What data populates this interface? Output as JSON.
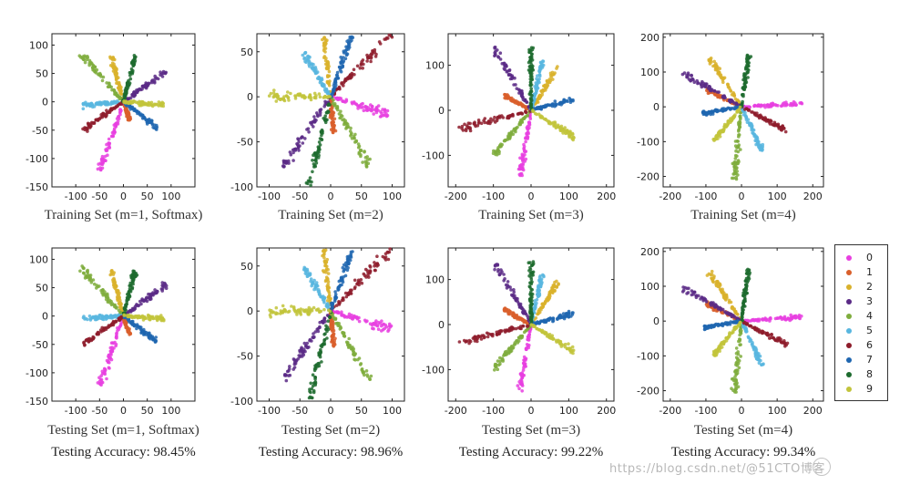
{
  "chart_data": [
    {
      "type": "scatter",
      "title": "",
      "xlabel": "Training Set (m=1, Softmax)",
      "xlim": [
        -150,
        150
      ],
      "ylim": [
        -150,
        120
      ],
      "xticks": [
        "-100",
        "-50",
        "0",
        "50",
        "100"
      ],
      "yticks": [
        "100",
        "50",
        "0",
        "-50",
        "-100",
        "-150"
      ],
      "accuracy": "",
      "series": [
        {
          "name": "0",
          "direction": [
            -40,
            -100
          ],
          "length": 130
        },
        {
          "name": "1",
          "direction": [
            10,
            -25
          ],
          "length": 35
        },
        {
          "name": "2",
          "direction": [
            -25,
            80
          ],
          "length": 85
        },
        {
          "name": "3",
          "direction": [
            90,
            55
          ],
          "length": 105
        },
        {
          "name": "4",
          "direction": [
            -90,
            85
          ],
          "length": 125
        },
        {
          "name": "5",
          "direction": [
            -80,
            -5
          ],
          "length": 85
        },
        {
          "name": "6",
          "direction": [
            -85,
            -50
          ],
          "length": 100
        },
        {
          "name": "7",
          "direction": [
            70,
            -45
          ],
          "length": 85
        },
        {
          "name": "8",
          "direction": [
            25,
            80
          ],
          "length": 85
        },
        {
          "name": "9",
          "direction": [
            80,
            -5
          ],
          "length": 85
        }
      ]
    },
    {
      "type": "scatter",
      "title": "",
      "xlabel": "Training Set (m=2)",
      "xlim": [
        -120,
        120
      ],
      "ylim": [
        -100,
        70
      ],
      "xticks": [
        "-100",
        "-50",
        "0",
        "50",
        "100"
      ],
      "yticks": [
        "50",
        "0",
        "-50",
        "-100"
      ],
      "accuracy": "",
      "series": [
        {
          "name": "0",
          "direction": [
            100,
            -20
          ],
          "length": 100
        },
        {
          "name": "1",
          "direction": [
            5,
            -40
          ],
          "length": 40
        },
        {
          "name": "2",
          "direction": [
            -15,
            90
          ],
          "length": 90
        },
        {
          "name": "3",
          "direction": [
            -80,
            -80
          ],
          "length": 110
        },
        {
          "name": "4",
          "direction": [
            65,
            -80
          ],
          "length": 100
        },
        {
          "name": "5",
          "direction": [
            -45,
            50
          ],
          "length": 65
        },
        {
          "name": "6",
          "direction": [
            100,
            70
          ],
          "length": 120
        },
        {
          "name": "7",
          "direction": [
            35,
            70
          ],
          "length": 75
        },
        {
          "name": "8",
          "direction": [
            -35,
            -100
          ],
          "length": 105
        },
        {
          "name": "9",
          "direction": [
            -100,
            0
          ],
          "length": 100
        }
      ]
    },
    {
      "type": "scatter",
      "title": "",
      "xlabel": "Training Set (m=3)",
      "xlim": [
        -220,
        220
      ],
      "ylim": [
        -170,
        170
      ],
      "xticks": [
        "-200",
        "-100",
        "0",
        "100",
        "200"
      ],
      "yticks": [
        "100",
        "0",
        "-100"
      ],
      "accuracy": "",
      "series": [
        {
          "name": "0",
          "direction": [
            -30,
            -150
          ],
          "length": 150
        },
        {
          "name": "1",
          "direction": [
            -75,
            35
          ],
          "length": 80
        },
        {
          "name": "2",
          "direction": [
            75,
            100
          ],
          "length": 120
        },
        {
          "name": "3",
          "direction": [
            -100,
            140
          ],
          "length": 170
        },
        {
          "name": "4",
          "direction": [
            -100,
            -100
          ],
          "length": 140
        },
        {
          "name": "5",
          "direction": [
            30,
            110
          ],
          "length": 115
        },
        {
          "name": "6",
          "direction": [
            -190,
            -40
          ],
          "length": 195
        },
        {
          "name": "7",
          "direction": [
            115,
            25
          ],
          "length": 115
        },
        {
          "name": "8",
          "direction": [
            0,
            140
          ],
          "length": 140
        },
        {
          "name": "9",
          "direction": [
            115,
            -60
          ],
          "length": 130
        }
      ]
    },
    {
      "type": "scatter",
      "title": "",
      "xlabel": "Training Set (m=4)",
      "xlim": [
        -220,
        230
      ],
      "ylim": [
        -230,
        210
      ],
      "xticks": [
        "-200",
        "-100",
        "0",
        "100",
        "200"
      ],
      "yticks": [
        "200",
        "100",
        "0",
        "-100",
        "-200"
      ],
      "accuracy": "",
      "series": [
        {
          "name": "0",
          "direction": [
            170,
            10
          ],
          "length": 170
        },
        {
          "name": "1",
          "direction": [
            -100,
            50
          ],
          "length": 110
        },
        {
          "name": "2",
          "direction": [
            -90,
            140
          ],
          "length": 165
        },
        {
          "name": "3",
          "direction": [
            -170,
            100
          ],
          "length": 195
        },
        {
          "name": "4",
          "direction": [
            -20,
            -210
          ],
          "length": 210
        },
        {
          "name": "5",
          "direction": [
            60,
            -130
          ],
          "length": 140
        },
        {
          "name": "6",
          "direction": [
            130,
            -70
          ],
          "length": 145
        },
        {
          "name": "7",
          "direction": [
            -110,
            -20
          ],
          "length": 110
        },
        {
          "name": "8",
          "direction": [
            20,
            150
          ],
          "length": 150
        },
        {
          "name": "9",
          "direction": [
            -80,
            -100
          ],
          "length": 125
        }
      ]
    },
    {
      "type": "scatter",
      "title": "",
      "xlabel": "Testing Set (m=1, Softmax)",
      "xlim": [
        -150,
        150
      ],
      "ylim": [
        -150,
        120
      ],
      "xticks": [
        "-100",
        "-50",
        "0",
        "50",
        "100"
      ],
      "yticks": [
        "100",
        "50",
        "0",
        "-50",
        "-100",
        "-150"
      ],
      "accuracy": "Testing Accuracy: 98.45%",
      "series": [
        {
          "name": "0",
          "direction": [
            -40,
            -100
          ],
          "length": 130
        },
        {
          "name": "1",
          "direction": [
            10,
            -25
          ],
          "length": 35
        },
        {
          "name": "2",
          "direction": [
            -25,
            80
          ],
          "length": 85
        },
        {
          "name": "3",
          "direction": [
            90,
            55
          ],
          "length": 105
        },
        {
          "name": "4",
          "direction": [
            -90,
            85
          ],
          "length": 125
        },
        {
          "name": "5",
          "direction": [
            -80,
            -5
          ],
          "length": 85
        },
        {
          "name": "6",
          "direction": [
            -85,
            -50
          ],
          "length": 100
        },
        {
          "name": "7",
          "direction": [
            70,
            -45
          ],
          "length": 85
        },
        {
          "name": "8",
          "direction": [
            25,
            80
          ],
          "length": 85
        },
        {
          "name": "9",
          "direction": [
            80,
            -5
          ],
          "length": 85
        }
      ]
    },
    {
      "type": "scatter",
      "title": "",
      "xlabel": "Testing Set (m=2)",
      "xlim": [
        -120,
        120
      ],
      "ylim": [
        -100,
        70
      ],
      "xticks": [
        "-100",
        "-50",
        "0",
        "50",
        "100"
      ],
      "yticks": [
        "50",
        "0",
        "-50",
        "-100"
      ],
      "accuracy": "Testing Accuracy: 98.96%",
      "series": [
        {
          "name": "0",
          "direction": [
            100,
            -20
          ],
          "length": 100
        },
        {
          "name": "1",
          "direction": [
            5,
            -40
          ],
          "length": 40
        },
        {
          "name": "2",
          "direction": [
            -15,
            90
          ],
          "length": 90
        },
        {
          "name": "3",
          "direction": [
            -80,
            -80
          ],
          "length": 110
        },
        {
          "name": "4",
          "direction": [
            65,
            -80
          ],
          "length": 100
        },
        {
          "name": "5",
          "direction": [
            -45,
            50
          ],
          "length": 65
        },
        {
          "name": "6",
          "direction": [
            100,
            70
          ],
          "length": 120
        },
        {
          "name": "7",
          "direction": [
            35,
            70
          ],
          "length": 75
        },
        {
          "name": "8",
          "direction": [
            -35,
            -100
          ],
          "length": 105
        },
        {
          "name": "9",
          "direction": [
            -100,
            0
          ],
          "length": 100
        }
      ]
    },
    {
      "type": "scatter",
      "title": "",
      "xlabel": "Testing Set (m=3)",
      "xlim": [
        -220,
        220
      ],
      "ylim": [
        -170,
        170
      ],
      "xticks": [
        "-200",
        "-100",
        "0",
        "100",
        "200"
      ],
      "yticks": [
        "100",
        "0",
        "-100"
      ],
      "accuracy": "Testing Accuracy: 99.22%",
      "series": [
        {
          "name": "0",
          "direction": [
            -30,
            -150
          ],
          "length": 150
        },
        {
          "name": "1",
          "direction": [
            -75,
            35
          ],
          "length": 80
        },
        {
          "name": "2",
          "direction": [
            75,
            100
          ],
          "length": 120
        },
        {
          "name": "3",
          "direction": [
            -100,
            140
          ],
          "length": 170
        },
        {
          "name": "4",
          "direction": [
            -100,
            -100
          ],
          "length": 140
        },
        {
          "name": "5",
          "direction": [
            30,
            110
          ],
          "length": 115
        },
        {
          "name": "6",
          "direction": [
            -190,
            -40
          ],
          "length": 195
        },
        {
          "name": "7",
          "direction": [
            115,
            25
          ],
          "length": 115
        },
        {
          "name": "8",
          "direction": [
            0,
            140
          ],
          "length": 140
        },
        {
          "name": "9",
          "direction": [
            115,
            -60
          ],
          "length": 130
        }
      ]
    },
    {
      "type": "scatter",
      "title": "",
      "xlabel": "Testing Set (m=4)",
      "xlim": [
        -220,
        230
      ],
      "ylim": [
        -230,
        210
      ],
      "xticks": [
        "-200",
        "-100",
        "0",
        "100",
        "200"
      ],
      "yticks": [
        "200",
        "100",
        "0",
        "-100",
        "-200"
      ],
      "accuracy": "Testing Accuracy: 99.34%",
      "series": [
        {
          "name": "0",
          "direction": [
            170,
            10
          ],
          "length": 170
        },
        {
          "name": "1",
          "direction": [
            -100,
            50
          ],
          "length": 110
        },
        {
          "name": "2",
          "direction": [
            -90,
            140
          ],
          "length": 165
        },
        {
          "name": "3",
          "direction": [
            -170,
            100
          ],
          "length": 195
        },
        {
          "name": "4",
          "direction": [
            -20,
            -210
          ],
          "length": 210
        },
        {
          "name": "5",
          "direction": [
            60,
            -130
          ],
          "length": 140
        },
        {
          "name": "6",
          "direction": [
            130,
            -70
          ],
          "length": 145
        },
        {
          "name": "7",
          "direction": [
            -110,
            -20
          ],
          "length": 110
        },
        {
          "name": "8",
          "direction": [
            20,
            150
          ],
          "length": 150
        },
        {
          "name": "9",
          "direction": [
            -80,
            -100
          ],
          "length": 125
        }
      ]
    }
  ],
  "legend": {
    "items": [
      {
        "label": "0",
        "color": "#e83fe0"
      },
      {
        "label": "1",
        "color": "#d95f2b"
      },
      {
        "label": "2",
        "color": "#d9b12c"
      },
      {
        "label": "3",
        "color": "#5a2a86"
      },
      {
        "label": "4",
        "color": "#7fad3d"
      },
      {
        "label": "5",
        "color": "#58b6df"
      },
      {
        "label": "6",
        "color": "#8e1c2b"
      },
      {
        "label": "7",
        "color": "#1f66b0"
      },
      {
        "label": "8",
        "color": "#1d6b2e"
      },
      {
        "label": "9",
        "color": "#c2c43b"
      }
    ]
  },
  "watermark": {
    "text": "https://blog.csdn.net/@51CTO博客"
  }
}
